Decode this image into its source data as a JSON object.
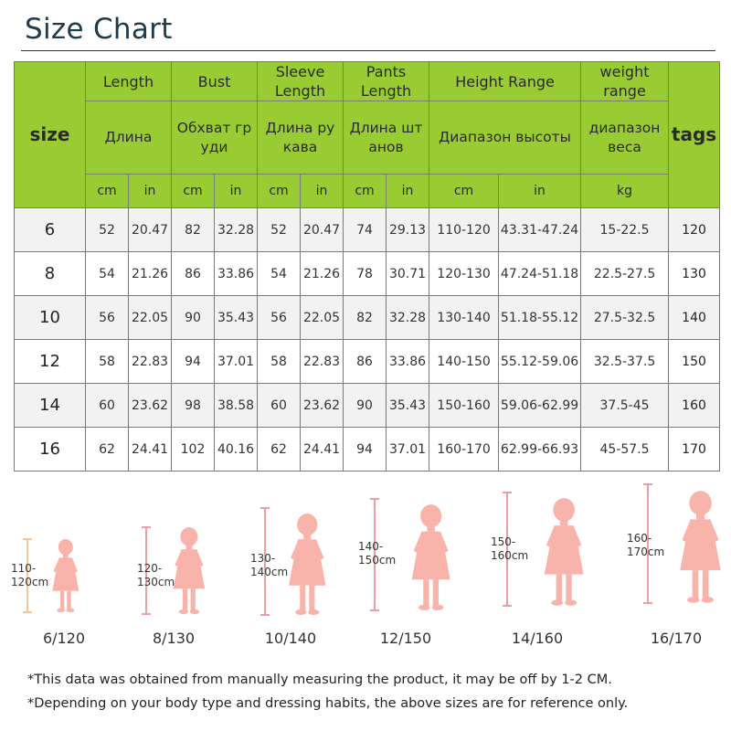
{
  "title": "Size Chart",
  "table": {
    "size_label": "size",
    "tags_label": "tags",
    "groups": [
      {
        "en": "Length",
        "ru": "Длина",
        "units": [
          "cm",
          "in"
        ]
      },
      {
        "en": "Bust",
        "ru": "Обхват гр уди",
        "units": [
          "cm",
          "in"
        ]
      },
      {
        "en": "Sleeve Length",
        "ru": "Длина ру кава",
        "units": [
          "cm",
          "in"
        ]
      },
      {
        "en": "Pants Length",
        "ru": "Длина шт анов",
        "units": [
          "cm",
          "in"
        ]
      },
      {
        "en": "Height Range",
        "ru": "Диапазон высоты",
        "units": [
          "cm",
          "in"
        ]
      },
      {
        "en": "weight range",
        "ru": "диапазон веса",
        "units": [
          "kg"
        ]
      }
    ],
    "rows": [
      {
        "size": "6",
        "values": [
          "52",
          "20.47",
          "82",
          "32.28",
          "52",
          "20.47",
          "74",
          "29.13",
          "110-120",
          "43.31-47.24",
          "15-22.5"
        ],
        "tag": "120"
      },
      {
        "size": "8",
        "values": [
          "54",
          "21.26",
          "86",
          "33.86",
          "54",
          "21.26",
          "78",
          "30.71",
          "120-130",
          "47.24-51.18",
          "22.5-27.5"
        ],
        "tag": "130"
      },
      {
        "size": "10",
        "values": [
          "56",
          "22.05",
          "90",
          "35.43",
          "56",
          "22.05",
          "82",
          "32.28",
          "130-140",
          "51.18-55.12",
          "27.5-32.5"
        ],
        "tag": "140"
      },
      {
        "size": "12",
        "values": [
          "58",
          "22.83",
          "94",
          "37.01",
          "58",
          "22.83",
          "86",
          "33.86",
          "140-150",
          "55.12-59.06",
          "32.5-37.5"
        ],
        "tag": "150"
      },
      {
        "size": "14",
        "values": [
          "60",
          "23.62",
          "98",
          "38.58",
          "60",
          "23.62",
          "90",
          "35.43",
          "150-160",
          "59.06-62.99",
          "37.5-45"
        ],
        "tag": "160"
      },
      {
        "size": "16",
        "values": [
          "62",
          "24.41",
          "102",
          "40.16",
          "62",
          "24.41",
          "94",
          "37.01",
          "160-170",
          "62.99-66.93",
          "45-57.5"
        ],
        "tag": "170"
      }
    ]
  },
  "figures": [
    {
      "range": "110-\n120cm",
      "caption": "6/120"
    },
    {
      "range": "120-\n130cm",
      "caption": "8/130"
    },
    {
      "range": "130-\n140cm",
      "caption": "10/140"
    },
    {
      "range": "140-\n150cm",
      "caption": "12/150"
    },
    {
      "range": "150-\n160cm",
      "caption": "14/160"
    },
    {
      "range": "160-\n170cm",
      "caption": "16/170"
    }
  ],
  "notes": [
    "*This data was obtained from manually measuring the product, it may be off by 1-2 CM.",
    "*Depending on your body type and dressing habits, the above sizes are for reference only."
  ],
  "colors": {
    "header_green": "#99cc33",
    "row_shade": "#f2f2f2",
    "figure_pink": "#f8b4aa",
    "marker_first": "#f2c79a",
    "marker": "#e8a0a4",
    "title": "#1f3a4a"
  }
}
